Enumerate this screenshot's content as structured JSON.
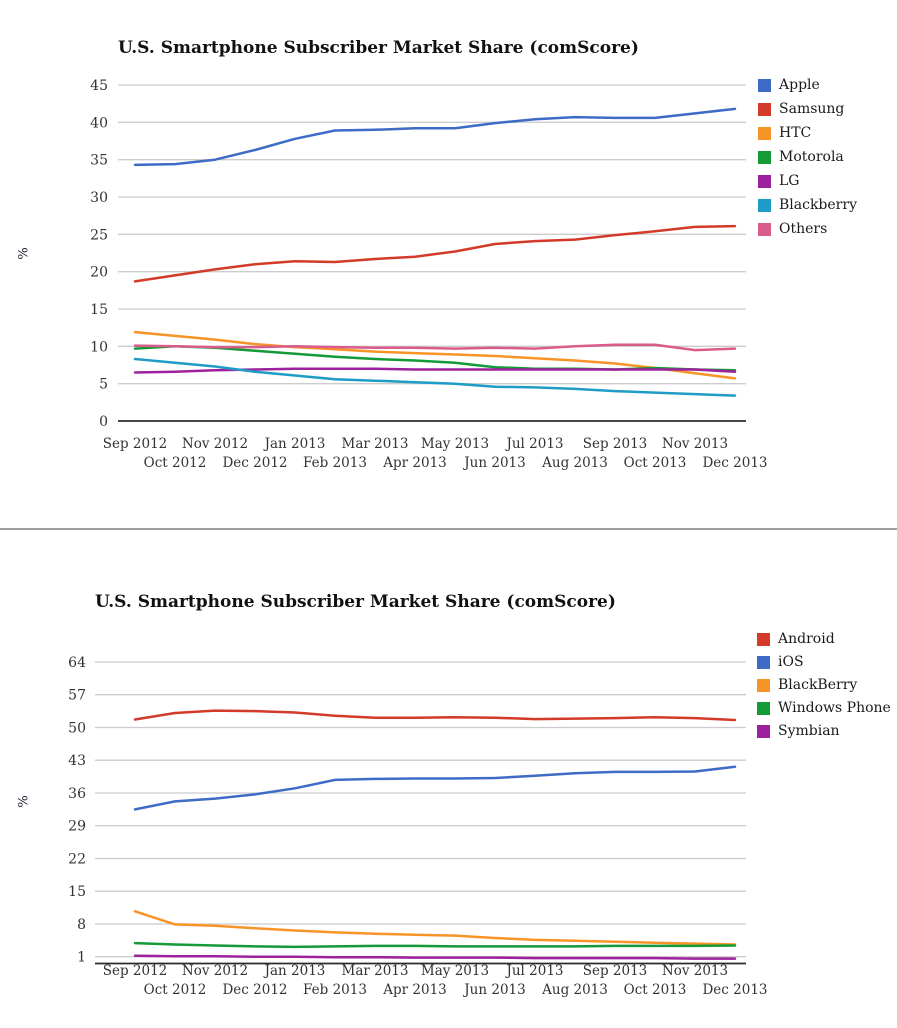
{
  "page": {
    "background": "#ffffff",
    "divider_color": "#9e9e9e",
    "grid_color": "#cccccc",
    "axis_color": "#2b2b2b"
  },
  "chart_data": [
    {
      "type": "line",
      "title": "U.S. Smartphone Subscriber Market Share (comScore)",
      "ylabel": "%",
      "xlabel": "",
      "grid": true,
      "legend_position": "right",
      "categories": [
        "Sep 2012",
        "Oct 2012",
        "Nov 2012",
        "Dec 2012",
        "Jan 2013",
        "Feb 2013",
        "Mar 2013",
        "Apr 2013",
        "May 2013",
        "Jun 2013",
        "Jul 2013",
        "Aug 2013",
        "Sep 2013",
        "Oct 2013",
        "Nov 2013",
        "Dec 2013"
      ],
      "y_ticks": [
        0,
        5,
        10,
        15,
        20,
        25,
        30,
        35,
        40,
        45
      ],
      "ylim": [
        0,
        46.5
      ],
      "series": [
        {
          "name": "Apple",
          "color": "#3d6bc5",
          "values": [
            34.3,
            34.4,
            35.0,
            36.3,
            37.8,
            38.9,
            39.0,
            39.2,
            39.2,
            39.9,
            40.4,
            40.7,
            40.6,
            40.6,
            41.2,
            41.8
          ]
        },
        {
          "name": "Samsung",
          "color": "#d33a2a",
          "values": [
            18.7,
            19.5,
            20.3,
            21.0,
            21.4,
            21.3,
            21.7,
            22.0,
            22.7,
            23.7,
            24.1,
            24.3,
            24.9,
            25.4,
            26.0,
            26.1
          ]
        },
        {
          "name": "HTC",
          "color": "#f79428",
          "values": [
            11.9,
            11.4,
            10.9,
            10.3,
            9.9,
            9.6,
            9.3,
            9.1,
            8.9,
            8.7,
            8.4,
            8.1,
            7.7,
            7.1,
            6.4,
            5.7
          ]
        },
        {
          "name": "Motorola",
          "color": "#159a38",
          "values": [
            9.7,
            10.0,
            9.8,
            9.4,
            9.0,
            8.6,
            8.3,
            8.1,
            7.8,
            7.2,
            7.0,
            7.0,
            6.9,
            7.1,
            6.9,
            6.8
          ]
        },
        {
          "name": "LG",
          "color": "#9d219c",
          "values": [
            6.5,
            6.6,
            6.8,
            6.9,
            7.0,
            7.0,
            7.0,
            6.9,
            6.9,
            6.9,
            6.9,
            6.9,
            6.9,
            6.9,
            6.9,
            6.6
          ]
        },
        {
          "name": "Blackberry",
          "color": "#1e9bc6",
          "values": [
            8.3,
            7.8,
            7.3,
            6.6,
            6.1,
            5.6,
            5.4,
            5.2,
            5.0,
            4.6,
            4.5,
            4.3,
            4.0,
            3.8,
            3.6,
            3.4
          ]
        },
        {
          "name": "Others",
          "color": "#da5c8c",
          "values": [
            10.1,
            10.0,
            9.9,
            9.9,
            10.0,
            9.9,
            9.8,
            9.8,
            9.7,
            9.8,
            9.7,
            10.0,
            10.2,
            10.2,
            9.5,
            9.7
          ]
        }
      ]
    },
    {
      "type": "line",
      "title": "U.S. Smartphone Subscriber Market Share (comScore)",
      "ylabel": "%",
      "xlabel": "",
      "grid": true,
      "legend_position": "right",
      "categories": [
        "Sep 2012",
        "Oct 2012",
        "Nov 2012",
        "Dec 2012",
        "Jan 2013",
        "Feb 2013",
        "Mar 2013",
        "Apr 2013",
        "May 2013",
        "Jun 2013",
        "Jul 2013",
        "Aug 2013",
        "Sep 2013",
        "Oct 2013",
        "Nov 2013",
        "Dec 2013"
      ],
      "y_ticks": [
        1,
        8,
        15,
        22,
        29,
        36,
        43,
        50,
        57,
        64
      ],
      "ylim": [
        -0.5,
        66
      ],
      "series": [
        {
          "name": "Android",
          "color": "#d33a2a",
          "values": [
            51.7,
            53.1,
            53.6,
            53.5,
            53.2,
            52.5,
            52.1,
            52.1,
            52.2,
            52.1,
            51.8,
            51.9,
            52.0,
            52.2,
            52.0,
            51.6
          ]
        },
        {
          "name": "iOS",
          "color": "#3d6bc5",
          "values": [
            32.5,
            34.2,
            34.8,
            35.7,
            37.0,
            38.8,
            39.0,
            39.1,
            39.1,
            39.2,
            39.7,
            40.2,
            40.5,
            40.5,
            40.6,
            41.6
          ]
        },
        {
          "name": "BlackBerry",
          "color": "#f79428",
          "values": [
            10.7,
            7.9,
            7.6,
            7.1,
            6.6,
            6.2,
            5.9,
            5.7,
            5.5,
            5.0,
            4.6,
            4.4,
            4.2,
            4.0,
            3.8,
            3.6
          ]
        },
        {
          "name": "Windows Phone",
          "color": "#159a38",
          "values": [
            3.9,
            3.6,
            3.4,
            3.2,
            3.1,
            3.2,
            3.3,
            3.3,
            3.2,
            3.2,
            3.2,
            3.2,
            3.3,
            3.3,
            3.3,
            3.4
          ]
        },
        {
          "name": "Symbian",
          "color": "#9d219c",
          "values": [
            1.2,
            1.1,
            1.1,
            1.0,
            1.0,
            0.9,
            0.9,
            0.8,
            0.8,
            0.8,
            0.7,
            0.7,
            0.7,
            0.7,
            0.6,
            0.6
          ]
        }
      ]
    }
  ]
}
